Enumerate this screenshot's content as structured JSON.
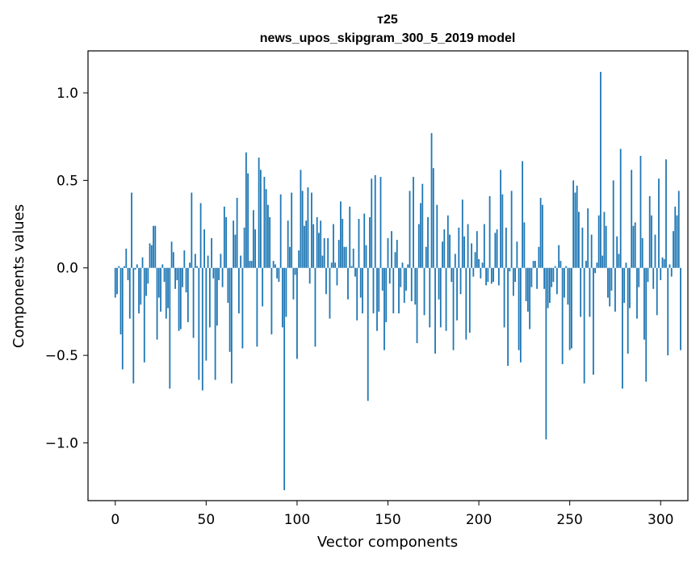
{
  "chart_data": {
    "type": "bar",
    "title": "т25",
    "subtitle": "news_upos_skipgram_300_5_2019 model",
    "xlabel": "Vector components",
    "ylabel": "Components values",
    "xlim": [
      -15,
      315
    ],
    "ylim": [
      -1.33,
      1.24
    ],
    "xticks": [
      0,
      50,
      100,
      150,
      200,
      250,
      300
    ],
    "xtick_labels": [
      "0",
      "50",
      "100",
      "150",
      "200",
      "250",
      "300"
    ],
    "yticks": [
      -1.0,
      -0.5,
      0.0,
      0.5,
      1.0
    ],
    "ytick_labels": [
      "−1.0",
      "−0.5",
      "0.0",
      "0.5",
      "1.0"
    ],
    "grid": false,
    "color": "#1f77b4",
    "values": [
      -0.17,
      -0.15,
      0.01,
      -0.38,
      -0.58,
      0.01,
      0.11,
      -0.07,
      -0.29,
      0.43,
      -0.66,
      -0.01,
      0.02,
      -0.26,
      -0.21,
      0.06,
      -0.54,
      -0.16,
      -0.09,
      0.14,
      0.13,
      0.24,
      0.24,
      -0.41,
      -0.17,
      -0.25,
      0.02,
      -0.08,
      -0.29,
      -0.23,
      -0.69,
      0.15,
      0.09,
      -0.12,
      -0.07,
      -0.36,
      -0.35,
      -0.11,
      0.1,
      -0.14,
      -0.31,
      0.03,
      0.43,
      -0.4,
      0.08,
      0.01,
      -0.64,
      0.37,
      -0.7,
      0.22,
      -0.53,
      0.07,
      -0.34,
      0.17,
      -0.06,
      -0.64,
      -0.33,
      -0.07,
      0.08,
      -0.11,
      0.35,
      0.29,
      -0.2,
      -0.48,
      -0.66,
      0.27,
      0.19,
      0.4,
      -0.26,
      0.07,
      -0.46,
      0.23,
      0.66,
      0.54,
      0.04,
      0.04,
      0.33,
      0.22,
      -0.45,
      0.63,
      0.56,
      -0.22,
      0.52,
      0.45,
      0.36,
      0.29,
      -0.38,
      0.04,
      0.02,
      -0.06,
      -0.08,
      0.42,
      -0.34,
      -1.27,
      -0.28,
      0.27,
      0.12,
      0.43,
      -0.18,
      -0.04,
      -0.52,
      0.1,
      0.56,
      0.44,
      0.24,
      0.27,
      0.46,
      -0.09,
      0.43,
      0.25,
      -0.45,
      0.29,
      0.2,
      0.27,
      0.07,
      0.17,
      -0.15,
      0.17,
      -0.29,
      0.03,
      0.25,
      0.03,
      -0.1,
      0.16,
      0.38,
      0.28,
      0.12,
      0.12,
      -0.18,
      0.35,
      0.01,
      0.11,
      -0.05,
      -0.3,
      0.28,
      -0.17,
      -0.26,
      0.31,
      0.13,
      -0.76,
      0.29,
      0.51,
      -0.26,
      0.53,
      -0.36,
      -0.25,
      0.52,
      -0.13,
      -0.47,
      -0.31,
      0.17,
      -0.09,
      0.21,
      -0.26,
      0.09,
      0.16,
      -0.26,
      -0.11,
      0.03,
      -0.2,
      -0.13,
      0.02,
      0.44,
      -0.19,
      0.52,
      -0.21,
      -0.43,
      0.25,
      0.37,
      0.48,
      -0.27,
      0.12,
      0.29,
      -0.34,
      0.77,
      0.57,
      -0.49,
      0.36,
      -0.18,
      -0.34,
      0.15,
      0.22,
      -0.36,
      0.3,
      0.19,
      -0.08,
      -0.47,
      0.08,
      -0.3,
      0.23,
      -0.15,
      0.39,
      0.18,
      -0.41,
      0.25,
      -0.37,
      0.14,
      -0.05,
      0.09,
      0.21,
      0.05,
      -0.06,
      0.03,
      0.25,
      -0.1,
      -0.08,
      0.41,
      -0.09,
      -0.08,
      0.2,
      0.22,
      -0.1,
      0.56,
      0.42,
      -0.34,
      0.23,
      -0.56,
      -0.02,
      0.44,
      -0.16,
      -0.08,
      0.15,
      -0.47,
      -0.54,
      0.61,
      0.26,
      -0.19,
      -0.25,
      -0.35,
      -0.11,
      0.04,
      0.04,
      -0.12,
      0.12,
      0.4,
      0.36,
      -0.12,
      -0.98,
      -0.23,
      -0.2,
      -0.11,
      -0.08,
      0.01,
      -0.15,
      0.13,
      0.04,
      -0.55,
      -0.17,
      0.01,
      -0.21,
      -0.47,
      -0.46,
      0.5,
      0.43,
      0.47,
      0.32,
      -0.28,
      0.23,
      -0.66,
      0.04,
      0.34,
      -0.28,
      0.19,
      -0.61,
      -0.03,
      0.03,
      0.3,
      1.12,
      0.07,
      0.32,
      0.24,
      -0.17,
      -0.22,
      -0.13,
      0.5,
      -0.25,
      0.18,
      0.08,
      0.68,
      -0.69,
      -0.2,
      0.03,
      -0.49,
      -0.23,
      0.56,
      0.24,
      0.26,
      -0.29,
      -0.11,
      0.64,
      0.17,
      -0.41,
      -0.65,
      -0.08,
      0.41,
      0.3,
      -0.12,
      0.19,
      -0.27,
      0.51,
      -0.07,
      0.06,
      0.05,
      0.62,
      -0.5,
      0.02,
      -0.05,
      0.21,
      0.35,
      0.3,
      0.44,
      -0.47
    ]
  }
}
